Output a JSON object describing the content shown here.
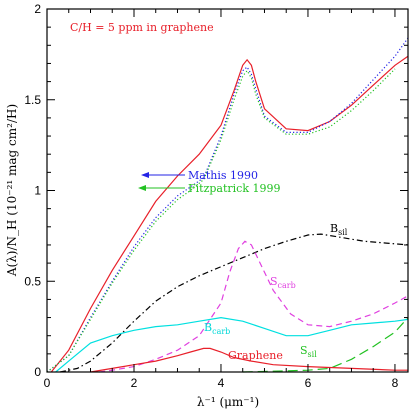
{
  "chart_data": {
    "type": "line",
    "title": "C/H = 5 ppm in graphene",
    "xlabel": "λ⁻¹  (μm⁻¹)",
    "ylabel": "A(λ)/N_H  (10⁻²¹ mag cm²/H)",
    "xlim": [
      0,
      8.3
    ],
    "ylim": [
      0,
      2
    ],
    "xticks": [
      0,
      2,
      4,
      6,
      8
    ],
    "yticks": [
      0,
      0.5,
      1,
      1.5,
      2
    ],
    "yticklabels": [
      "0",
      "0.5",
      "1",
      "1.5",
      "2"
    ],
    "grid": false,
    "colors": {
      "title": "#e8202a",
      "total": "#e8202a",
      "mathis": "#2323e6",
      "fitz": "#22c122",
      "bsil": "#000000",
      "scarb": "#e040e0",
      "bcarb": "#00e0e0",
      "ssil": "#22c122",
      "graphene": "#e8202a"
    },
    "annotations": {
      "mathis": "Mathis 1990",
      "fitz": "Fitzpatrick 1999",
      "bsil": "B",
      "bsil_sub": "sil",
      "scarb": "S",
      "scarb_sub": "carb",
      "bcarb": "B",
      "bcarb_sub": "carb",
      "ssil": "S",
      "ssil_sub": "sil",
      "graphene": "Graphene"
    },
    "series": [
      {
        "key": "total",
        "style": "solid",
        "x": [
          0.1,
          0.5,
          1,
          1.5,
          2,
          2.5,
          3,
          3.5,
          4,
          4.3,
          4.5,
          4.6,
          4.7,
          4.8,
          5,
          5.5,
          6,
          6.5,
          7,
          7.5,
          8,
          8.3
        ],
        "y": [
          0,
          0.12,
          0.35,
          0.56,
          0.75,
          0.94,
          1.08,
          1.2,
          1.36,
          1.55,
          1.69,
          1.72,
          1.69,
          1.6,
          1.45,
          1.34,
          1.33,
          1.38,
          1.47,
          1.58,
          1.69,
          1.74
        ]
      },
      {
        "key": "mathis",
        "style": "dotted",
        "x": [
          0,
          0.5,
          1,
          1.5,
          2,
          2.5,
          3,
          3.3,
          3.6,
          4,
          4.3,
          4.5,
          4.6,
          4.7,
          4.8,
          5,
          5.5,
          6,
          6.5,
          7,
          7.5,
          8,
          8.3
        ],
        "y": [
          0,
          0.09,
          0.3,
          0.5,
          0.69,
          0.85,
          0.97,
          1.02,
          1.07,
          1.3,
          1.53,
          1.66,
          1.68,
          1.64,
          1.56,
          1.41,
          1.32,
          1.32,
          1.38,
          1.48,
          1.61,
          1.74,
          1.84
        ]
      },
      {
        "key": "fitz",
        "style": "dotted",
        "x": [
          0,
          0.5,
          1,
          1.5,
          2,
          2.5,
          3,
          3.3,
          3.6,
          4,
          4.3,
          4.5,
          4.6,
          4.7,
          4.8,
          5,
          5.5,
          6,
          6.5,
          7,
          7.5,
          8
        ],
        "y": [
          0,
          0.09,
          0.29,
          0.49,
          0.67,
          0.83,
          0.95,
          1.0,
          1.06,
          1.28,
          1.5,
          1.63,
          1.66,
          1.62,
          1.53,
          1.4,
          1.31,
          1.31,
          1.35,
          1.44,
          1.55,
          1.67
        ]
      },
      {
        "key": "bsil",
        "style": "dashdot",
        "x": [
          0.3,
          0.7,
          1,
          1.5,
          2,
          2.5,
          3,
          3.5,
          4,
          4.5,
          5,
          5.5,
          6,
          6.3,
          6.8,
          7.3,
          7.8,
          8.3
        ],
        "y": [
          0,
          0.02,
          0.06,
          0.16,
          0.28,
          0.39,
          0.47,
          0.53,
          0.58,
          0.63,
          0.68,
          0.72,
          0.755,
          0.76,
          0.74,
          0.72,
          0.71,
          0.7
        ]
      },
      {
        "key": "scarb",
        "style": "dashed",
        "x": [
          1.2,
          1.5,
          2,
          2.5,
          3,
          3.5,
          4,
          4.2,
          4.4,
          4.55,
          4.7,
          4.9,
          5.2,
          5.6,
          6,
          6.5,
          7,
          7.5,
          8,
          8.3
        ],
        "y": [
          0,
          0.01,
          0.03,
          0.07,
          0.12,
          0.2,
          0.38,
          0.55,
          0.68,
          0.72,
          0.7,
          0.6,
          0.45,
          0.32,
          0.26,
          0.25,
          0.28,
          0.32,
          0.38,
          0.42
        ]
      },
      {
        "key": "bcarb",
        "style": "solid",
        "x": [
          0.2,
          0.5,
          1,
          1.5,
          2,
          2.5,
          3,
          3.5,
          4,
          4.5,
          5,
          5.5,
          6,
          6.5,
          7,
          7.5,
          8,
          8.3
        ],
        "y": [
          0,
          0.06,
          0.16,
          0.2,
          0.23,
          0.25,
          0.26,
          0.28,
          0.3,
          0.28,
          0.24,
          0.2,
          0.2,
          0.23,
          0.26,
          0.27,
          0.28,
          0.29
        ]
      },
      {
        "key": "ssil",
        "style": "longdash",
        "x": [
          4.5,
          5,
          5.5,
          6,
          6.5,
          7,
          7.5,
          8,
          8.3
        ],
        "y": [
          0,
          0.003,
          0.006,
          0.01,
          0.02,
          0.07,
          0.14,
          0.22,
          0.3
        ]
      },
      {
        "key": "graphene",
        "style": "solid",
        "x": [
          1,
          1.5,
          2,
          2.5,
          3,
          3.3,
          3.6,
          3.75,
          4,
          4.3,
          4.7,
          5.2,
          6,
          7,
          8,
          8.3
        ],
        "y": [
          0,
          0.02,
          0.04,
          0.06,
          0.09,
          0.11,
          0.13,
          0.13,
          0.11,
          0.08,
          0.06,
          0.04,
          0.03,
          0.02,
          0.01,
          0.01
        ]
      }
    ]
  }
}
